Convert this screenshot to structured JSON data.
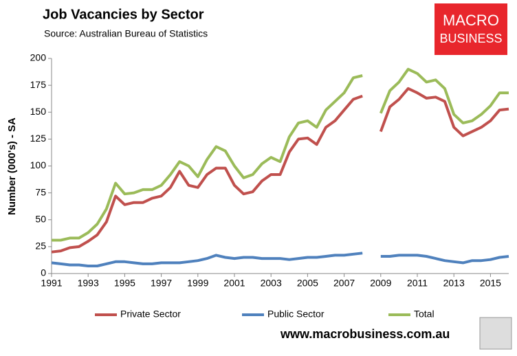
{
  "chart_data": {
    "type": "line",
    "title": "Job Vacancies by Sector",
    "subtitle": "Source: Australian Bureau of Statistics",
    "ylabel": "Number (000's) - SA",
    "logo": [
      "MACRO",
      "BUSINESS"
    ],
    "footer": "www.macrobusiness.com.au",
    "x": [
      1991,
      1991.5,
      1992,
      1992.5,
      1993,
      1993.5,
      1994,
      1994.5,
      1995,
      1995.5,
      1996,
      1996.5,
      1997,
      1997.5,
      1998,
      1998.5,
      1999,
      1999.5,
      2000,
      2000.5,
      2001,
      2001.5,
      2002,
      2002.5,
      2003,
      2003.5,
      2004,
      2004.5,
      2005,
      2005.5,
      2006,
      2006.5,
      2007,
      2007.5,
      2008,
      2008.5,
      2009,
      2009.5,
      2010,
      2010.5,
      2011,
      2011.5,
      2012,
      2012.5,
      2013,
      2013.5,
      2014,
      2014.5,
      2015,
      2015.5,
      2016
    ],
    "series": [
      {
        "name": "Private Sector",
        "color": "#c0504d",
        "values": [
          20,
          21,
          24,
          25,
          30,
          36,
          48,
          72,
          64,
          66,
          66,
          70,
          72,
          80,
          95,
          82,
          80,
          92,
          98,
          98,
          82,
          74,
          76,
          86,
          92,
          92,
          113,
          125,
          126,
          120,
          136,
          142,
          152,
          162,
          165,
          null,
          132,
          155,
          162,
          172,
          168,
          163,
          164,
          160,
          136,
          128,
          132,
          136,
          142,
          152,
          153
        ]
      },
      {
        "name": "Public Sector",
        "color": "#4f81bd",
        "values": [
          10,
          9,
          8,
          8,
          7,
          7,
          9,
          11,
          11,
          10,
          9,
          9,
          10,
          10,
          10,
          11,
          12,
          14,
          17,
          15,
          14,
          15,
          15,
          14,
          14,
          14,
          13,
          14,
          15,
          15,
          16,
          17,
          17,
          18,
          19,
          null,
          16,
          16,
          17,
          17,
          17,
          16,
          14,
          12,
          11,
          10,
          12,
          12,
          13,
          15,
          16
        ]
      },
      {
        "name": "Total",
        "color": "#9bbb59",
        "values": [
          31,
          31,
          33,
          33,
          38,
          46,
          60,
          84,
          74,
          75,
          78,
          78,
          82,
          92,
          104,
          100,
          90,
          106,
          118,
          114,
          100,
          89,
          92,
          102,
          108,
          104,
          127,
          140,
          142,
          136,
          152,
          160,
          168,
          182,
          184,
          null,
          149,
          170,
          178,
          190,
          186,
          178,
          180,
          172,
          148,
          140,
          142,
          148,
          156,
          168,
          168
        ]
      }
    ],
    "xlim": [
      1991,
      2016
    ],
    "xticks": [
      1991,
      1993,
      1995,
      1997,
      1999,
      2001,
      2003,
      2005,
      2007,
      2009,
      2011,
      2013,
      2015
    ],
    "ylim": [
      0,
      200
    ],
    "yticks": [
      0,
      25,
      50,
      75,
      100,
      125,
      150,
      175,
      200
    ],
    "grid": false
  }
}
